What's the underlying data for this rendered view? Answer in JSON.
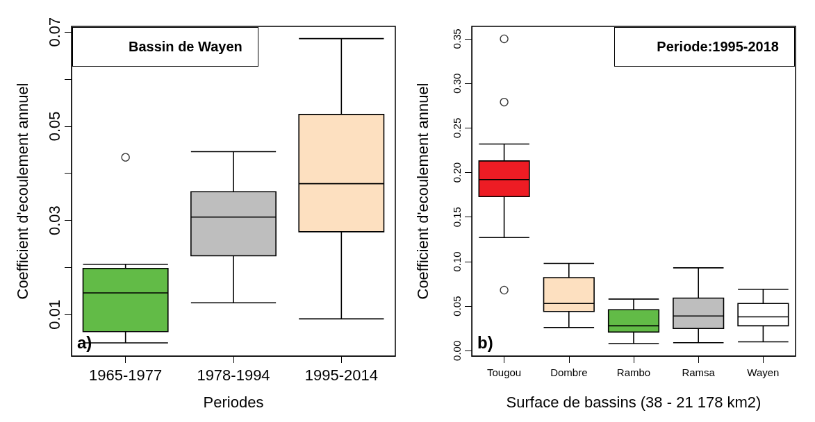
{
  "chart_data": [
    {
      "type": "box",
      "title": "Bassin de Wayen",
      "xlabel": "Periodes",
      "ylabel": "Coefficient d'ecoulement annuel",
      "annotations": [
        "a)"
      ],
      "categories": [
        "1965-1977",
        "1978-1994",
        "1995-2014"
      ],
      "colors": [
        "#62bb47",
        "#bebebe",
        "#fde0c0"
      ],
      "boxes": [
        {
          "low": 0.004,
          "q1": 0.0064,
          "median": 0.0146,
          "q3": 0.0198,
          "high": 0.0207,
          "outliers": [
            0.0434
          ]
        },
        {
          "low": 0.0125,
          "q1": 0.0225,
          "median": 0.0307,
          "q3": 0.0361,
          "high": 0.0446
        },
        {
          "low": 0.0091,
          "q1": 0.0276,
          "median": 0.0378,
          "q3": 0.0525,
          "high": 0.0686
        }
      ],
      "ylim": [
        0.0012,
        0.0712
      ],
      "yticks": [
        0.01,
        {
          "value": 0.02,
          "label": null
        },
        0.03,
        {
          "value": 0.04,
          "label": null
        },
        0.05,
        {
          "value": 0.06,
          "label": null
        },
        0.07
      ]
    },
    {
      "type": "box",
      "title": "Periode:1995-2018",
      "xlabel": "Surface de bassins (38 - 21 178 km2)",
      "ylabel": "Coefficient d'ecoulement annuel",
      "annotations": [
        "b)"
      ],
      "categories": [
        "Tougou",
        "Dombre",
        "Rambo",
        "Ramsa",
        "Wayen"
      ],
      "colors": [
        "#ed1c24",
        "#fde0c0",
        "#62bb47",
        "#bebebe",
        "#ffffff"
      ],
      "boxes": [
        {
          "low": 0.127,
          "q1": 0.173,
          "median": 0.192,
          "q3": 0.213,
          "high": 0.232,
          "outliers": [
            0.35,
            0.279,
            0.068
          ]
        },
        {
          "low": 0.026,
          "q1": 0.044,
          "median": 0.053,
          "q3": 0.082,
          "high": 0.098
        },
        {
          "low": 0.008,
          "q1": 0.021,
          "median": 0.028,
          "q3": 0.046,
          "high": 0.058
        },
        {
          "low": 0.009,
          "q1": 0.025,
          "median": 0.039,
          "q3": 0.059,
          "high": 0.093
        },
        {
          "low": 0.01,
          "q1": 0.028,
          "median": 0.038,
          "q3": 0.053,
          "high": 0.069
        }
      ],
      "ylim": [
        -0.006,
        0.364
      ],
      "yticks": [
        {
          "value": 0,
          "label": "0.00"
        },
        0.05,
        {
          "value": 0.1,
          "label": "0.10"
        },
        0.15,
        {
          "value": 0.2,
          "label": "0.20"
        },
        0.25,
        {
          "value": 0.3,
          "label": "0.30"
        },
        0.35
      ]
    }
  ]
}
